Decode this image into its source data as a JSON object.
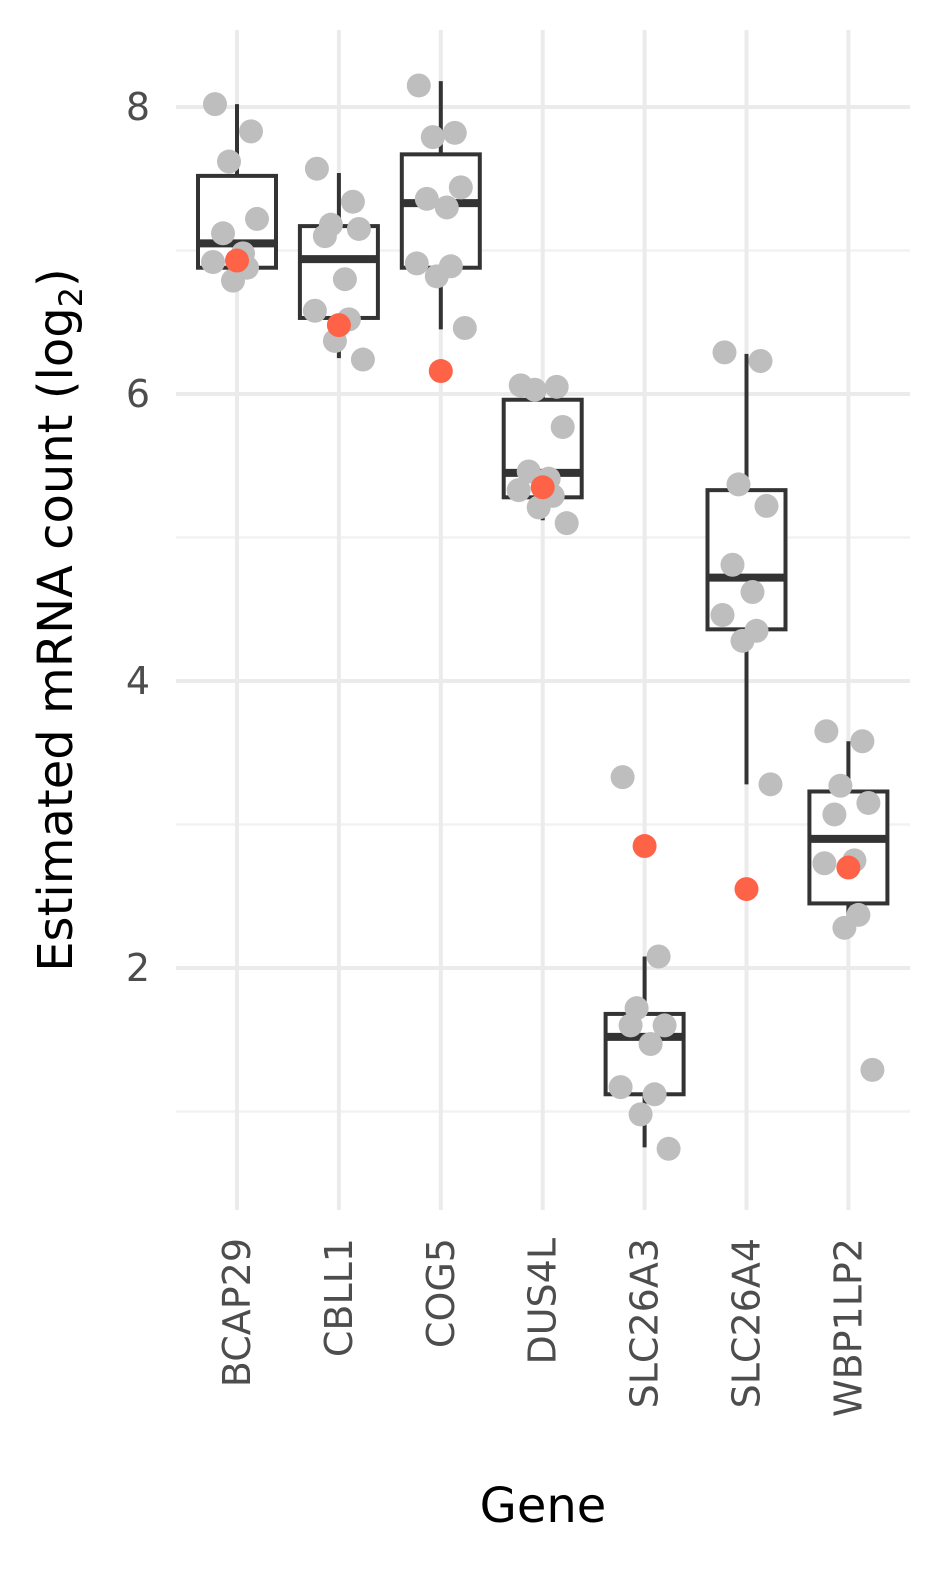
{
  "chart_data": {
    "type": "box",
    "xlabel": "Gene",
    "ylabel_main": "Estimated mRNA count (log",
    "ylabel_sub": "2",
    "ylabel_close": ")",
    "ylim": [
      0.6,
      8.65
    ],
    "y_ticks": [
      2,
      4,
      6,
      8
    ],
    "y_tick_labels": [
      "2",
      "4",
      "6",
      "8"
    ],
    "y_minor_ticks": [
      1,
      3,
      5,
      7
    ],
    "grid": true,
    "categories": [
      "BCAP29",
      "CBLL1",
      "COG5",
      "DUS4L",
      "SLC26A3",
      "SLC26A4",
      "WBP1LP2"
    ],
    "boxes": [
      {
        "category": "BCAP29",
        "whisker_low": 6.87,
        "q1": 6.88,
        "median": 7.05,
        "q3": 7.52,
        "whisker_high": 8.02
      },
      {
        "category": "CBLL1",
        "whisker_low": 6.25,
        "q1": 6.53,
        "median": 6.94,
        "q3": 7.17,
        "whisker_high": 7.54
      },
      {
        "category": "COG5",
        "whisker_low": 6.45,
        "q1": 6.88,
        "median": 7.33,
        "q3": 7.67,
        "whisker_high": 8.18
      },
      {
        "category": "DUS4L",
        "whisker_low": 5.12,
        "q1": 5.28,
        "median": 5.45,
        "q3": 5.96,
        "whisker_high": 6.07
      },
      {
        "category": "SLC26A3",
        "whisker_low": 0.75,
        "q1": 1.12,
        "median": 1.52,
        "q3": 1.68,
        "whisker_high": 2.08
      },
      {
        "category": "SLC26A4",
        "whisker_low": 3.28,
        "q1": 4.36,
        "median": 4.72,
        "q3": 5.33,
        "whisker_high": 6.28
      },
      {
        "category": "WBP1LP2",
        "whisker_low": 2.28,
        "q1": 2.45,
        "median": 2.9,
        "q3": 3.23,
        "whisker_high": 3.58
      }
    ],
    "points": [
      {
        "category": "BCAP29",
        "values": [
          8.02,
          7.83,
          7.62,
          7.22,
          7.12,
          6.98,
          6.92,
          6.88,
          6.79
        ]
      },
      {
        "category": "CBLL1",
        "values": [
          7.57,
          7.34,
          7.18,
          7.15,
          7.1,
          6.8,
          6.58,
          6.52,
          6.37,
          6.24
        ]
      },
      {
        "category": "COG5",
        "values": [
          8.15,
          7.82,
          7.79,
          7.44,
          7.36,
          7.3,
          6.91,
          6.89,
          6.82,
          6.46
        ]
      },
      {
        "category": "DUS4L",
        "values": [
          6.06,
          6.05,
          6.03,
          5.77,
          5.46,
          5.41,
          5.33,
          5.29,
          5.21,
          5.1
        ]
      },
      {
        "category": "SLC26A3",
        "values": [
          3.33,
          2.08,
          1.72,
          1.6,
          1.6,
          1.47,
          1.17,
          1.12,
          0.98,
          0.74
        ]
      },
      {
        "category": "SLC26A4",
        "values": [
          6.29,
          6.23,
          5.37,
          5.22,
          4.81,
          4.62,
          4.46,
          4.35,
          4.28,
          3.28
        ]
      },
      {
        "category": "WBP1LP2",
        "values": [
          3.65,
          3.58,
          3.27,
          3.15,
          3.07,
          2.75,
          2.73,
          2.37,
          2.28,
          1.29
        ]
      }
    ],
    "highlight_points": [
      {
        "category": "BCAP29",
        "value": 6.93
      },
      {
        "category": "CBLL1",
        "value": 6.48
      },
      {
        "category": "COG5",
        "value": 6.16
      },
      {
        "category": "DUS4L",
        "value": 5.35
      },
      {
        "category": "SLC26A3",
        "value": 2.85
      },
      {
        "category": "SLC26A4",
        "value": 2.55
      },
      {
        "category": "WBP1LP2",
        "value": 2.7
      }
    ],
    "colors": {
      "points": "#bebebe",
      "highlight": "#ff6347",
      "box_stroke": "#333333",
      "grid_major": "#ebebeb",
      "grid_minor": "#f2f2f2"
    }
  }
}
